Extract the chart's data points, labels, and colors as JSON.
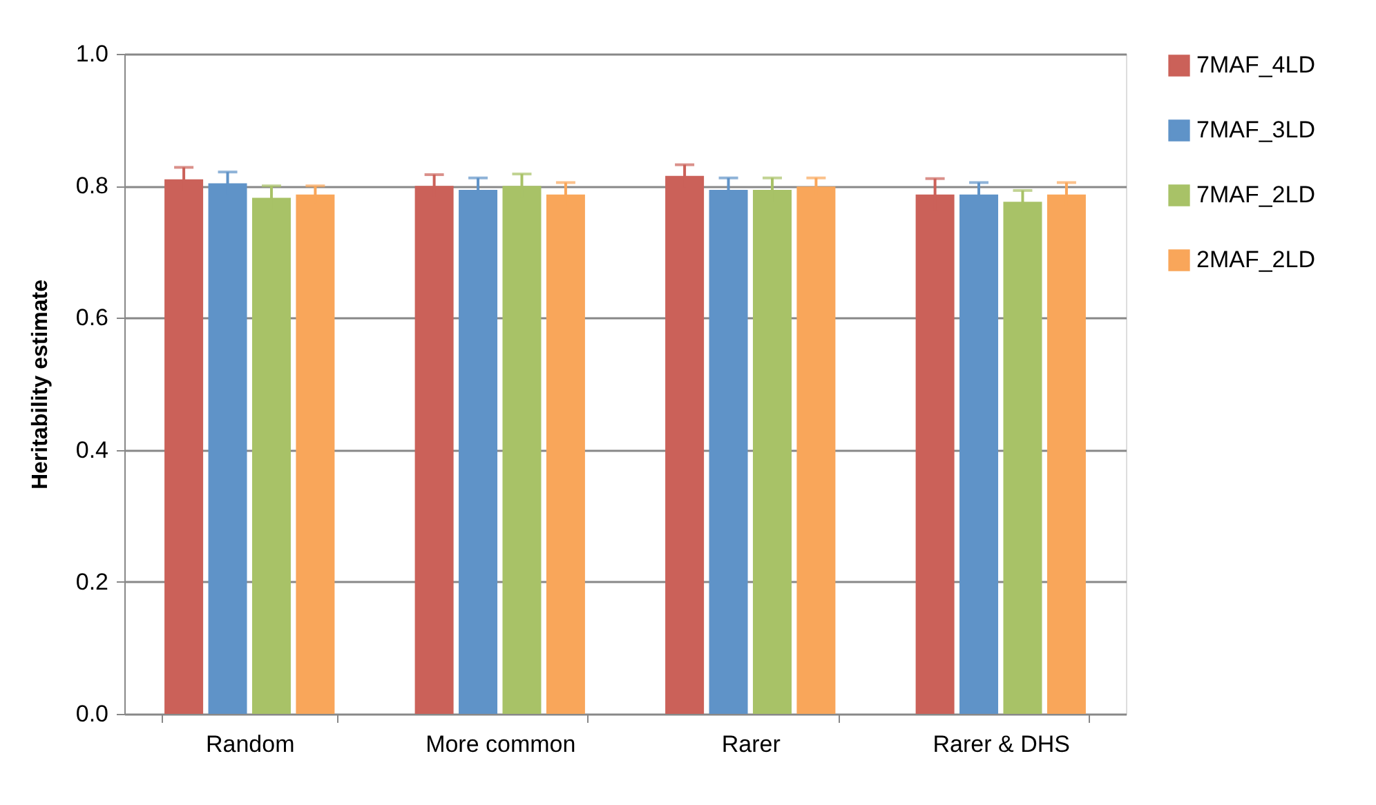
{
  "chart_data": {
    "type": "bar",
    "ylabel": "Heritability estimate",
    "categories": [
      "Random",
      "More common",
      "Rarer",
      "Rarer & DHS"
    ],
    "series": [
      {
        "name": "7MAF_4LD",
        "color": "#cb6159",
        "values": [
          0.81,
          0.8,
          0.815,
          0.787
        ],
        "errors": [
          0.018,
          0.017,
          0.017,
          0.024
        ]
      },
      {
        "name": "7MAF_3LD",
        "color": "#5f93c8",
        "values": [
          0.804,
          0.794,
          0.794,
          0.787
        ],
        "errors": [
          0.017,
          0.018,
          0.018,
          0.018
        ]
      },
      {
        "name": "7MAF_2LD",
        "color": "#a8c267",
        "values": [
          0.782,
          0.8,
          0.794,
          0.776
        ],
        "errors": [
          0.018,
          0.018,
          0.018,
          0.017
        ]
      },
      {
        "name": "2MAF_2LD",
        "color": "#f9a65a",
        "values": [
          0.787,
          0.787,
          0.799,
          0.787
        ],
        "errors": [
          0.013,
          0.018,
          0.013,
          0.018
        ]
      }
    ],
    "ylim": [
      0,
      1.0
    ],
    "yticks": [
      {
        "value": 0,
        "label": "0.0"
      },
      {
        "value": 0.2,
        "label": "0.2"
      },
      {
        "value": 0.4,
        "label": "0.4"
      },
      {
        "value": 0.6,
        "label": "0.6"
      },
      {
        "value": 0.8,
        "label": "0.8"
      },
      {
        "value": 1.0,
        "label": "1.0"
      }
    ],
    "grid": "y",
    "legend": "top right"
  }
}
